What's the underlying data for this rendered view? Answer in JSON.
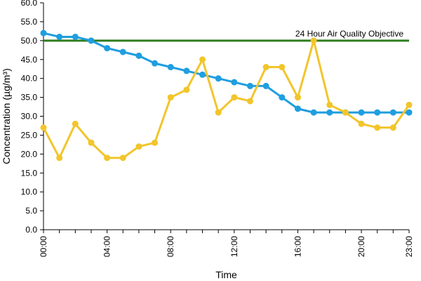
{
  "chart_data": {
    "type": "line",
    "title": "",
    "xlabel": "Time",
    "ylabel": "Concentration (µg/m³)",
    "x": [
      0,
      1,
      2,
      3,
      4,
      5,
      6,
      7,
      8,
      9,
      10,
      11,
      12,
      13,
      14,
      15,
      16,
      17,
      18,
      19,
      20,
      21,
      22,
      23
    ],
    "xticks": [
      0,
      4,
      8,
      12,
      16,
      20,
      23
    ],
    "xtick_labels": [
      "00:00",
      "04:00",
      "08:00",
      "12:00",
      "16:00",
      "20:00",
      "23:00"
    ],
    "ylim": [
      0,
      60
    ],
    "yticks": [
      0,
      5,
      10,
      15,
      20,
      25,
      30,
      35,
      40,
      45,
      50,
      55,
      60
    ],
    "ytick_labels": [
      "0.0",
      "5.0",
      "10.0",
      "15.0",
      "20.0",
      "25.0",
      "30.0",
      "35.0",
      "40.0",
      "45.0",
      "50.0",
      "55.0",
      "60.0"
    ],
    "grid": false,
    "legend": "none",
    "series": [
      {
        "color": "#1f9ee0",
        "values": [
          52,
          51,
          51,
          50,
          48,
          47,
          46,
          44,
          43,
          42,
          41,
          40,
          39,
          38,
          38,
          35,
          32,
          31,
          31,
          31,
          31,
          31,
          31,
          31
        ]
      },
      {
        "color": "#f2c52b",
        "values": [
          27,
          19,
          28,
          23,
          19,
          19,
          22,
          23,
          35,
          37,
          45,
          31,
          35,
          34,
          43,
          43,
          35,
          50,
          33,
          31,
          28,
          27,
          27,
          33
        ]
      }
    ],
    "reference_line": {
      "label": "24 Hour Air Quality Objective",
      "value": 50,
      "color": "#2e7d1e"
    }
  }
}
